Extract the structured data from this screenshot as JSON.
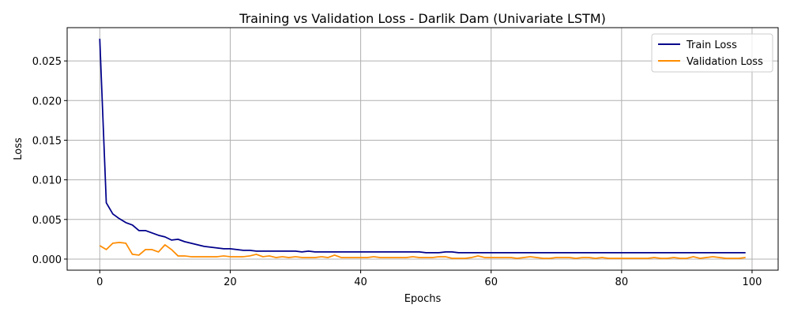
{
  "chart_data": {
    "type": "line",
    "title": "Training vs Validation Loss - Darlik Dam (Univariate LSTM)",
    "xlabel": "Epochs",
    "ylabel": "Loss",
    "xlim": [
      -5,
      104
    ],
    "ylim": [
      -0.0014,
      0.0292
    ],
    "xticks": [
      0,
      20,
      40,
      60,
      80,
      100
    ],
    "xtick_labels": [
      "0",
      "20",
      "40",
      "60",
      "80",
      "100"
    ],
    "yticks": [
      0.0,
      0.005,
      0.01,
      0.015,
      0.02,
      0.025
    ],
    "ytick_labels": [
      "0.000",
      "0.005",
      "0.010",
      "0.015",
      "0.020",
      "0.025"
    ],
    "grid": true,
    "legend_position": "top-right",
    "x": [
      0,
      1,
      2,
      3,
      4,
      5,
      6,
      7,
      8,
      9,
      10,
      11,
      12,
      13,
      14,
      15,
      16,
      17,
      18,
      19,
      20,
      21,
      22,
      23,
      24,
      25,
      26,
      27,
      28,
      29,
      30,
      31,
      32,
      33,
      34,
      35,
      36,
      37,
      38,
      39,
      40,
      41,
      42,
      43,
      44,
      45,
      46,
      47,
      48,
      49,
      50,
      51,
      52,
      53,
      54,
      55,
      56,
      57,
      58,
      59,
      60,
      61,
      62,
      63,
      64,
      65,
      66,
      67,
      68,
      69,
      70,
      71,
      72,
      73,
      74,
      75,
      76,
      77,
      78,
      79,
      80,
      81,
      82,
      83,
      84,
      85,
      86,
      87,
      88,
      89,
      90,
      91,
      92,
      93,
      94,
      95,
      96,
      97,
      98,
      99
    ],
    "series": [
      {
        "name": "Train Loss",
        "color": "#00008b",
        "values": [
          0.0278,
          0.0071,
          0.0057,
          0.0051,
          0.0046,
          0.0043,
          0.0036,
          0.0036,
          0.0033,
          0.003,
          0.0028,
          0.0024,
          0.0025,
          0.0022,
          0.002,
          0.0018,
          0.0016,
          0.0015,
          0.0014,
          0.0013,
          0.0013,
          0.0012,
          0.0011,
          0.0011,
          0.001,
          0.001,
          0.001,
          0.001,
          0.001,
          0.001,
          0.001,
          0.0009,
          0.001,
          0.0009,
          0.0009,
          0.0009,
          0.0009,
          0.0009,
          0.0009,
          0.0009,
          0.0009,
          0.0009,
          0.0009,
          0.0009,
          0.0009,
          0.0009,
          0.0009,
          0.0009,
          0.0009,
          0.0009,
          0.0008,
          0.0008,
          0.0008,
          0.0009,
          0.0009,
          0.0008,
          0.0008,
          0.0008,
          0.0008,
          0.0008,
          0.0008,
          0.0008,
          0.0008,
          0.0008,
          0.0008,
          0.0008,
          0.0008,
          0.0008,
          0.0008,
          0.0008,
          0.0008,
          0.0008,
          0.0008,
          0.0008,
          0.0008,
          0.0008,
          0.0008,
          0.0008,
          0.0008,
          0.0008,
          0.0008,
          0.0008,
          0.0008,
          0.0008,
          0.0008,
          0.0008,
          0.0008,
          0.0008,
          0.0008,
          0.0008,
          0.0008,
          0.0008,
          0.0008,
          0.0008,
          0.0008,
          0.0008,
          0.0008,
          0.0008,
          0.0008,
          0.0008
        ]
      },
      {
        "name": "Validation Loss",
        "color": "#ff8c00",
        "values": [
          0.0017,
          0.0012,
          0.002,
          0.0021,
          0.002,
          0.0006,
          0.0005,
          0.0012,
          0.0012,
          0.0009,
          0.0018,
          0.0012,
          0.0004,
          0.0004,
          0.0003,
          0.0003,
          0.0003,
          0.0003,
          0.0003,
          0.0004,
          0.0003,
          0.0003,
          0.0003,
          0.0004,
          0.0006,
          0.0003,
          0.0004,
          0.0002,
          0.0003,
          0.0002,
          0.0003,
          0.0002,
          0.0002,
          0.0002,
          0.0003,
          0.0002,
          0.0005,
          0.0002,
          0.0002,
          0.0002,
          0.0002,
          0.0002,
          0.0003,
          0.0002,
          0.0002,
          0.0002,
          0.0002,
          0.0002,
          0.0003,
          0.0002,
          0.0002,
          0.0002,
          0.0003,
          0.0003,
          0.0001,
          0.0001,
          0.0001,
          0.0002,
          0.0004,
          0.0002,
          0.0002,
          0.0002,
          0.0002,
          0.0002,
          0.0001,
          0.0002,
          0.0003,
          0.0002,
          0.0001,
          0.0001,
          0.0002,
          0.0002,
          0.0002,
          0.0001,
          0.0002,
          0.0002,
          0.0001,
          0.0002,
          0.0001,
          0.0001,
          0.0001,
          0.0001,
          0.0001,
          0.0001,
          0.0001,
          0.0002,
          0.0001,
          0.0001,
          0.0002,
          0.0001,
          0.0001,
          0.0003,
          0.0001,
          0.0002,
          0.0003,
          0.0002,
          0.0001,
          0.0001,
          0.0001,
          0.0002
        ]
      }
    ]
  }
}
